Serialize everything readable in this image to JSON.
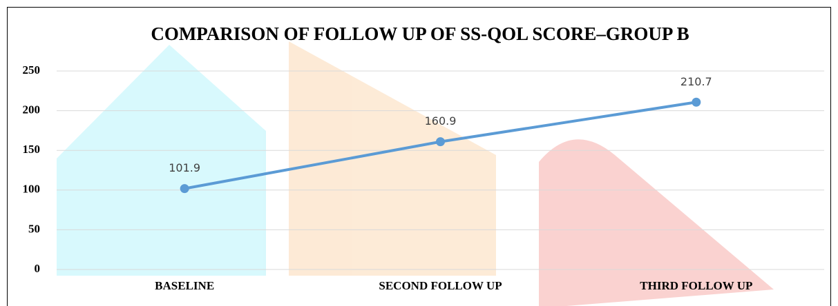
{
  "chart_data": {
    "type": "line",
    "title": "COMPARISON OF FOLLOW UP OF SS-QOL SCORE–GROUP B",
    "categories": [
      "BASELINE",
      "SECOND FOLLOW UP",
      "THIRD FOLLOW UP"
    ],
    "values": [
      101.9,
      160.9,
      210.7
    ],
    "color": "#5b9bd5",
    "ylim": [
      0,
      250
    ],
    "yticks": [
      0,
      50,
      100,
      150,
      200,
      250
    ],
    "grid": true
  }
}
